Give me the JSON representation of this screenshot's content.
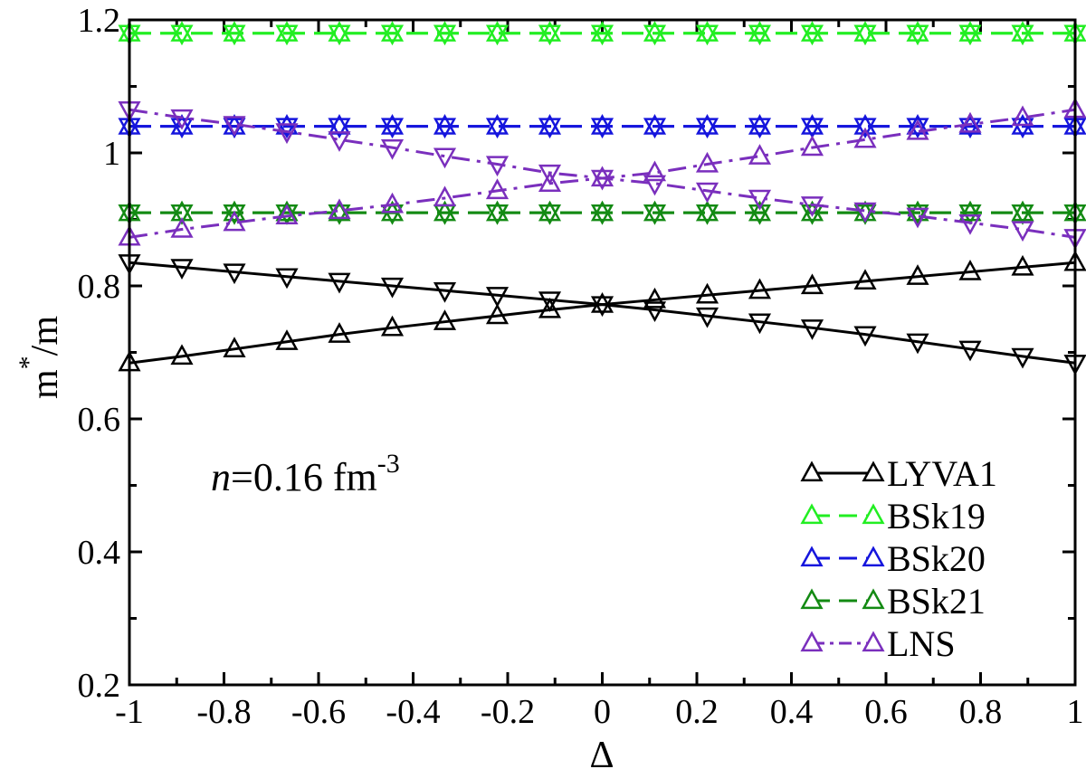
{
  "chart_data": {
    "type": "line",
    "xlabel": "Δ",
    "ylabel_main": "m",
    "ylabel_sup": "*",
    "ylabel_tail": "/m",
    "xlim": [
      -1,
      1
    ],
    "ylim": [
      0.2,
      1.2
    ],
    "x_ticks": [
      -1,
      -0.8,
      -0.6,
      -0.4,
      -0.2,
      0,
      0.2,
      0.4,
      0.6,
      0.8,
      1
    ],
    "x_tick_labels": [
      "-1",
      "-0.8",
      "-0.6",
      "-0.4",
      "-0.2",
      "0",
      "0.2",
      "0.4",
      "0.6",
      "0.8",
      "1"
    ],
    "y_ticks": [
      0.2,
      0.4,
      0.6,
      0.8,
      1.0,
      1.2
    ],
    "y_tick_labels": [
      "0.2",
      "0.4",
      "0.6",
      "0.8",
      "1",
      "1.2"
    ],
    "annotation": {
      "italic": "n",
      "text": "=0.16 fm",
      "sup": "-3"
    },
    "x": [
      -1.0,
      -0.889,
      -0.778,
      -0.667,
      -0.556,
      -0.444,
      -0.333,
      -0.222,
      -0.111,
      0.0,
      0.111,
      0.222,
      0.333,
      0.444,
      0.556,
      0.667,
      0.778,
      0.889,
      1.0
    ],
    "series": [
      {
        "name": "LYVA1",
        "color": "#000000",
        "dash": "solid",
        "up": [
          0.684,
          0.694,
          0.705,
          0.716,
          0.727,
          0.737,
          0.746,
          0.755,
          0.764,
          0.772,
          0.779,
          0.786,
          0.793,
          0.8,
          0.807,
          0.814,
          0.821,
          0.828,
          0.835
        ],
        "down": [
          0.835,
          0.828,
          0.821,
          0.814,
          0.807,
          0.8,
          0.793,
          0.786,
          0.779,
          0.772,
          0.764,
          0.755,
          0.746,
          0.737,
          0.727,
          0.716,
          0.705,
          0.694,
          0.684
        ]
      },
      {
        "name": "BSk19",
        "color": "#22ee22",
        "dash": "long",
        "up": [
          1.18,
          1.18,
          1.18,
          1.18,
          1.18,
          1.18,
          1.18,
          1.18,
          1.18,
          1.18,
          1.18,
          1.18,
          1.18,
          1.18,
          1.18,
          1.18,
          1.18,
          1.18,
          1.18
        ],
        "down": [
          1.18,
          1.18,
          1.18,
          1.18,
          1.18,
          1.18,
          1.18,
          1.18,
          1.18,
          1.18,
          1.18,
          1.18,
          1.18,
          1.18,
          1.18,
          1.18,
          1.18,
          1.18,
          1.18
        ]
      },
      {
        "name": "BSk20",
        "color": "#1515dd",
        "dash": "long",
        "up": [
          1.04,
          1.04,
          1.04,
          1.04,
          1.04,
          1.04,
          1.04,
          1.04,
          1.04,
          1.04,
          1.04,
          1.04,
          1.04,
          1.04,
          1.04,
          1.04,
          1.04,
          1.04,
          1.04
        ],
        "down": [
          1.04,
          1.04,
          1.04,
          1.04,
          1.04,
          1.04,
          1.04,
          1.04,
          1.04,
          1.04,
          1.04,
          1.04,
          1.04,
          1.04,
          1.04,
          1.04,
          1.04,
          1.04,
          1.04
        ]
      },
      {
        "name": "BSk21",
        "color": "#138a13",
        "dash": "long",
        "up": [
          0.91,
          0.91,
          0.91,
          0.91,
          0.91,
          0.91,
          0.91,
          0.91,
          0.91,
          0.91,
          0.91,
          0.91,
          0.91,
          0.91,
          0.91,
          0.91,
          0.91,
          0.91,
          0.91
        ],
        "down": [
          0.91,
          0.91,
          0.91,
          0.91,
          0.91,
          0.91,
          0.91,
          0.91,
          0.91,
          0.91,
          0.91,
          0.91,
          0.91,
          0.91,
          0.91,
          0.91,
          0.91,
          0.91,
          0.91
        ]
      },
      {
        "name": "LNS",
        "color": "#7a2fbd",
        "dash": "dashdot",
        "up": [
          0.873,
          0.885,
          0.895,
          0.905,
          0.913,
          0.922,
          0.932,
          0.943,
          0.954,
          0.962,
          0.97,
          0.983,
          0.995,
          1.008,
          1.02,
          1.032,
          1.043,
          1.053,
          1.065
        ],
        "down": [
          1.065,
          1.053,
          1.043,
          1.032,
          1.02,
          1.008,
          0.995,
          0.983,
          0.97,
          0.962,
          0.954,
          0.943,
          0.932,
          0.922,
          0.913,
          0.905,
          0.895,
          0.885,
          0.873
        ]
      }
    ]
  }
}
